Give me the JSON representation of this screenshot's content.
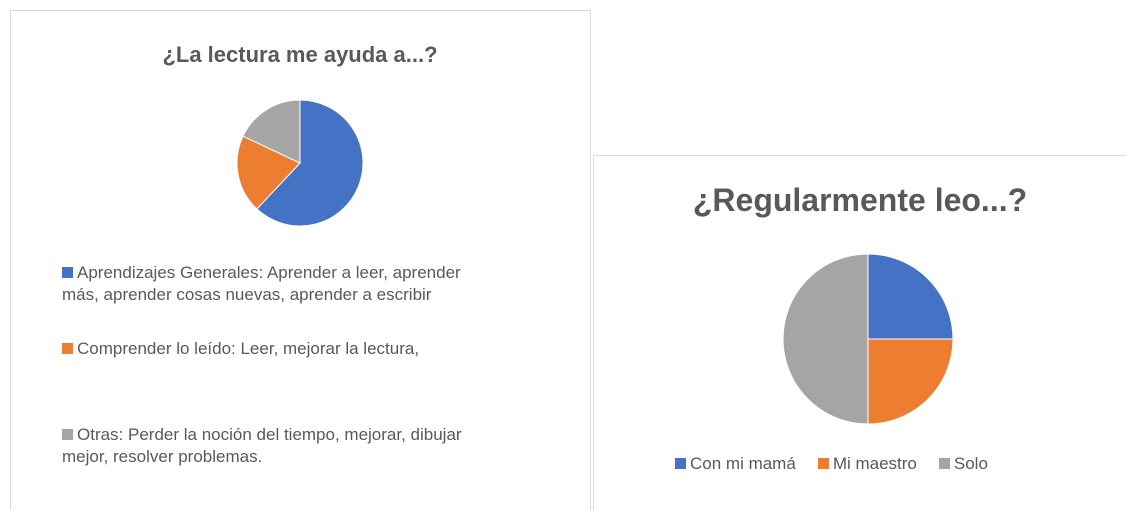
{
  "chart_data": [
    {
      "type": "pie",
      "title": "¿La lectura me ayuda a...?",
      "categories": [
        "Aprendizajes Generales: Aprender a leer, aprender más, aprender cosas nuevas, aprender a escribir",
        "Comprender lo leído: Leer, mejorar la lectura,",
        "Otras: Perder la noción del tiempo, mejorar, dibujar mejor, resolver problemas."
      ],
      "values": [
        62,
        20,
        18
      ],
      "colors": [
        "#4472c4",
        "#ed7d31",
        "#a5a5a5"
      ],
      "legend": "bottom"
    },
    {
      "type": "pie",
      "title": "¿Regularmente leo...?",
      "categories": [
        "Con mi mamá",
        "Mi maestro",
        "Solo"
      ],
      "values": [
        25,
        25,
        50
      ],
      "colors": [
        "#4472c4",
        "#ed7d31",
        "#a5a5a5"
      ],
      "legend": "bottom"
    }
  ]
}
